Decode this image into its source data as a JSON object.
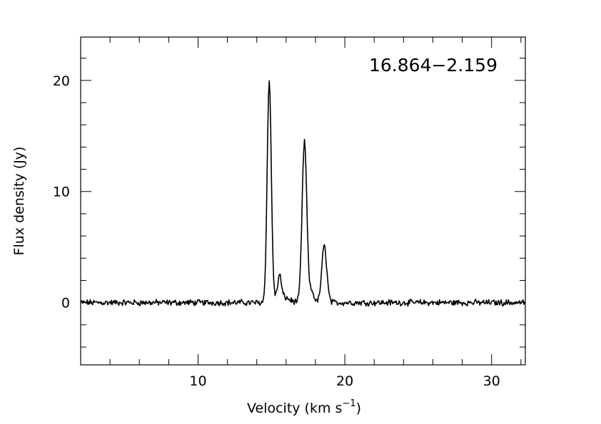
{
  "chart_data": {
    "type": "line",
    "title": "",
    "annotation": "16.864−2.159",
    "xlabel_main": "Velocity (km s",
    "xlabel_sup": "−1",
    "xlabel_tail": ")",
    "ylabel": "Flux density (Jy)",
    "xlim": [
      2.0,
      32.3
    ],
    "ylim": [
      -5.6,
      23.9
    ],
    "xticks": [
      {
        "value": 10,
        "label": "10"
      },
      {
        "value": 20,
        "label": "20"
      },
      {
        "value": 30,
        "label": "30"
      }
    ],
    "yticks": [
      {
        "value": 0,
        "label": "0"
      },
      {
        "value": 10,
        "label": "10"
      },
      {
        "value": 20,
        "label": "20"
      }
    ],
    "x_minor_step": 2,
    "y_minor_step": 2,
    "grid": false,
    "legend": "none",
    "line_color": "#000000",
    "peaks": [
      {
        "velocity": 14.85,
        "flux": 20.0,
        "width": 0.14
      },
      {
        "velocity": 15.55,
        "flux": 2.0,
        "width": 0.12
      },
      {
        "velocity": 17.25,
        "flux": 14.5,
        "width": 0.16
      },
      {
        "velocity": 17.75,
        "flux": 1.0,
        "width": 0.15
      },
      {
        "velocity": 18.6,
        "flux": 5.1,
        "width": 0.17
      }
    ],
    "baseline_noise": 0.22
  }
}
